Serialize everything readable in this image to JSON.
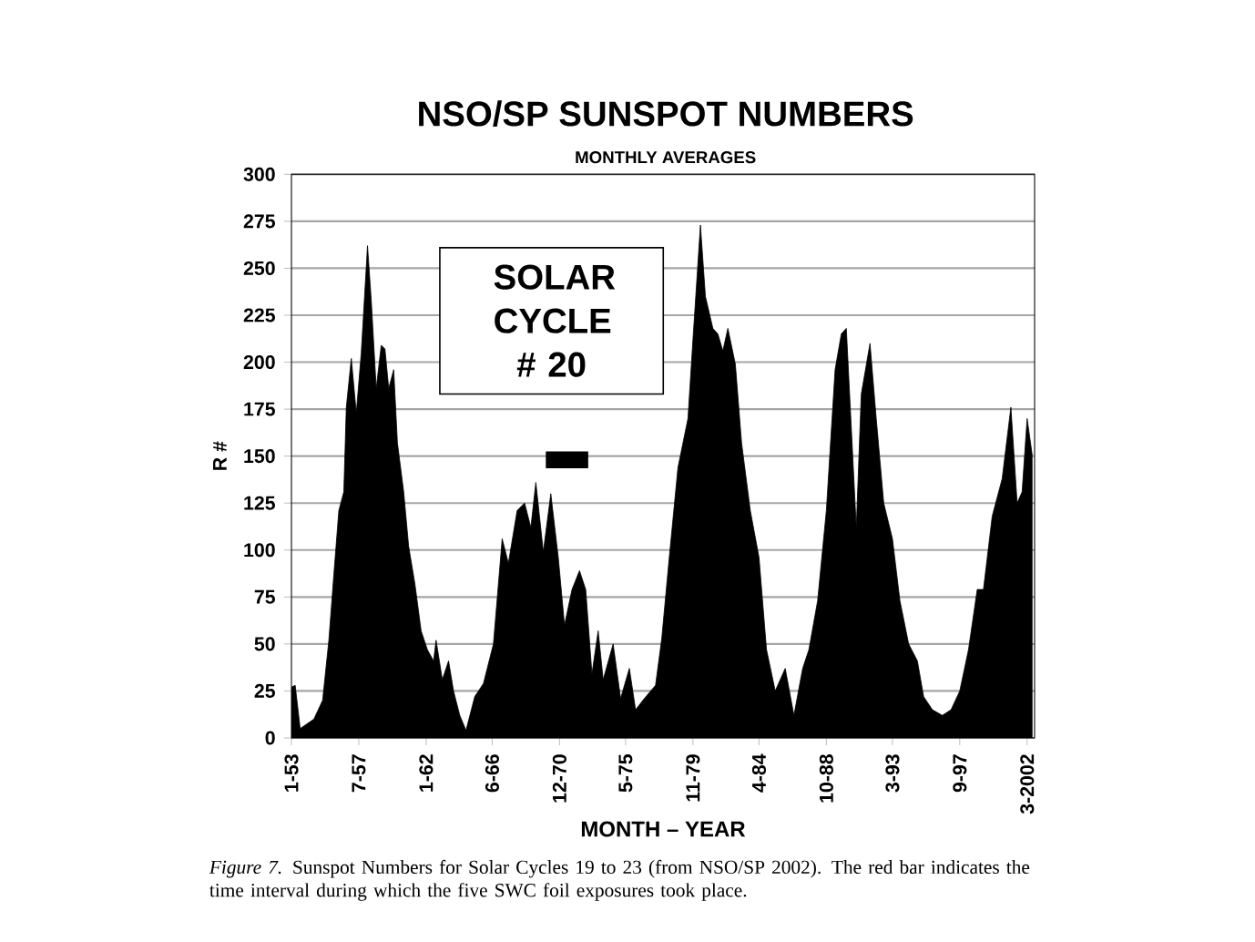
{
  "chart_data": {
    "type": "area",
    "title": "NSO/SP SUNSPOT NUMBERS",
    "subtitle": "MONTHLY AVERAGES",
    "xlabel": "MONTH – YEAR",
    "ylabel": "R #",
    "annotations": [
      "SOLAR CYCLE # 20",
      "*Figure 7.* Sunspot Numbers for Solar Cycles 19 to 23 (from NSO/SP 2002). The red bar indicates the time interval during which the five SWC foil exposures took place."
    ],
    "x": [
      "1953-01",
      "1953-04",
      "1953-08",
      "1954-07",
      "1955-02",
      "1955-07",
      "1955-11",
      "1956-03",
      "1956-07",
      "1956-09",
      "1957-01",
      "1957-05",
      "1957-09",
      "1958-02",
      "1958-05",
      "1958-09",
      "1959-01",
      "1959-04",
      "1959-07",
      "1959-11",
      "1960-02",
      "1960-07",
      "1960-11",
      "1961-04",
      "1961-09",
      "1962-02",
      "1962-07",
      "1962-09",
      "1963-02",
      "1963-07",
      "1963-11",
      "1964-04",
      "1964-09",
      "1965-04",
      "1965-11",
      "1966-07",
      "1967-02",
      "1967-07",
      "1968-02",
      "1968-08",
      "1969-01",
      "1969-05",
      "1969-11",
      "1970-05",
      "1970-11",
      "1971-04",
      "1971-10",
      "1972-04",
      "1972-09",
      "1973-02",
      "1973-07",
      "1973-11",
      "1974-07",
      "1975-01",
      "1975-08",
      "1976-01",
      "1976-08",
      "1977-05",
      "1977-10",
      "1978-04",
      "1978-11",
      "1979-07",
      "1979-11",
      "1980-05",
      "1980-09",
      "1981-03",
      "1981-07",
      "1981-11",
      "1982-03",
      "1982-09",
      "1983-02",
      "1983-09",
      "1984-04",
      "1984-10",
      "1985-05",
      "1986-01",
      "1986-08",
      "1987-03",
      "1987-08",
      "1988-03",
      "1988-10",
      "1989-05",
      "1989-10",
      "1990-02",
      "1990-10",
      "1991-02",
      "1991-09",
      "1992-02",
      "1992-08",
      "1993-03",
      "1993-09",
      "1994-04",
      "1994-11",
      "1995-04",
      "1995-11",
      "1996-07",
      "1997-02",
      "1997-09",
      "1998-04",
      "1998-11",
      "1999-04",
      "1999-11",
      "2000-07",
      "2001-02",
      "2001-07",
      "2001-11",
      "2002-03",
      "2002-07"
    ],
    "series": [
      {
        "color": "#000000",
        "values": [
          27,
          28,
          5,
          10,
          20,
          52,
          87,
          121,
          131,
          176,
          202,
          173,
          205,
          262,
          233,
          186,
          209,
          207,
          186,
          196,
          157,
          131,
          102,
          82,
          57,
          47,
          41,
          52,
          31,
          41,
          25,
          12,
          4,
          22,
          29,
          50,
          106,
          93,
          121,
          125,
          112,
          136,
          99,
          130,
          96,
          60,
          79,
          89,
          79,
          34,
          57,
          31,
          50,
          21,
          37,
          15,
          21,
          28,
          53,
          96,
          144,
          170,
          212,
          273,
          235,
          218,
          215,
          206,
          218,
          199,
          157,
          121,
          96,
          47,
          25,
          37,
          12,
          37,
          47,
          73,
          121,
          196,
          215,
          218,
          112,
          183,
          210,
          170,
          125,
          106,
          73,
          50,
          41,
          22,
          15,
          12,
          15,
          25,
          47,
          79,
          79,
          118,
          138,
          176,
          125,
          131,
          170,
          151
        ]
      },
      {
        "type": "line",
        "color": "#000000",
        "x": [
          "1970-01",
          "1972-11"
        ],
        "values": [
          148,
          148
        ]
      }
    ],
    "xlim": [
      "1953-01",
      "2002-09"
    ],
    "ylim": [
      0,
      300
    ],
    "xticks": [
      {
        "value": "1953-01",
        "label": "1-53"
      },
      {
        "value": "1957-07",
        "label": "7-57"
      },
      {
        "value": "1962-01",
        "label": "1-62"
      },
      {
        "value": "1966-06",
        "label": "6-66"
      },
      {
        "value": "1970-12",
        "label": "12-70"
      },
      {
        "value": "1975-05",
        "label": "5-75"
      },
      {
        "value": "1979-11",
        "label": "11-79"
      },
      {
        "value": "1984-04",
        "label": "4-84"
      },
      {
        "value": "1988-10",
        "label": "10-88"
      },
      {
        "value": "1993-03",
        "label": "3-93"
      },
      {
        "value": "1997-09",
        "label": "9-97"
      },
      {
        "value": "2002-03",
        "label": "3-2002"
      }
    ],
    "yticks": [
      0,
      25,
      50,
      75,
      100,
      125,
      150,
      175,
      200,
      225,
      250,
      275,
      300
    ],
    "grid": "y"
  }
}
